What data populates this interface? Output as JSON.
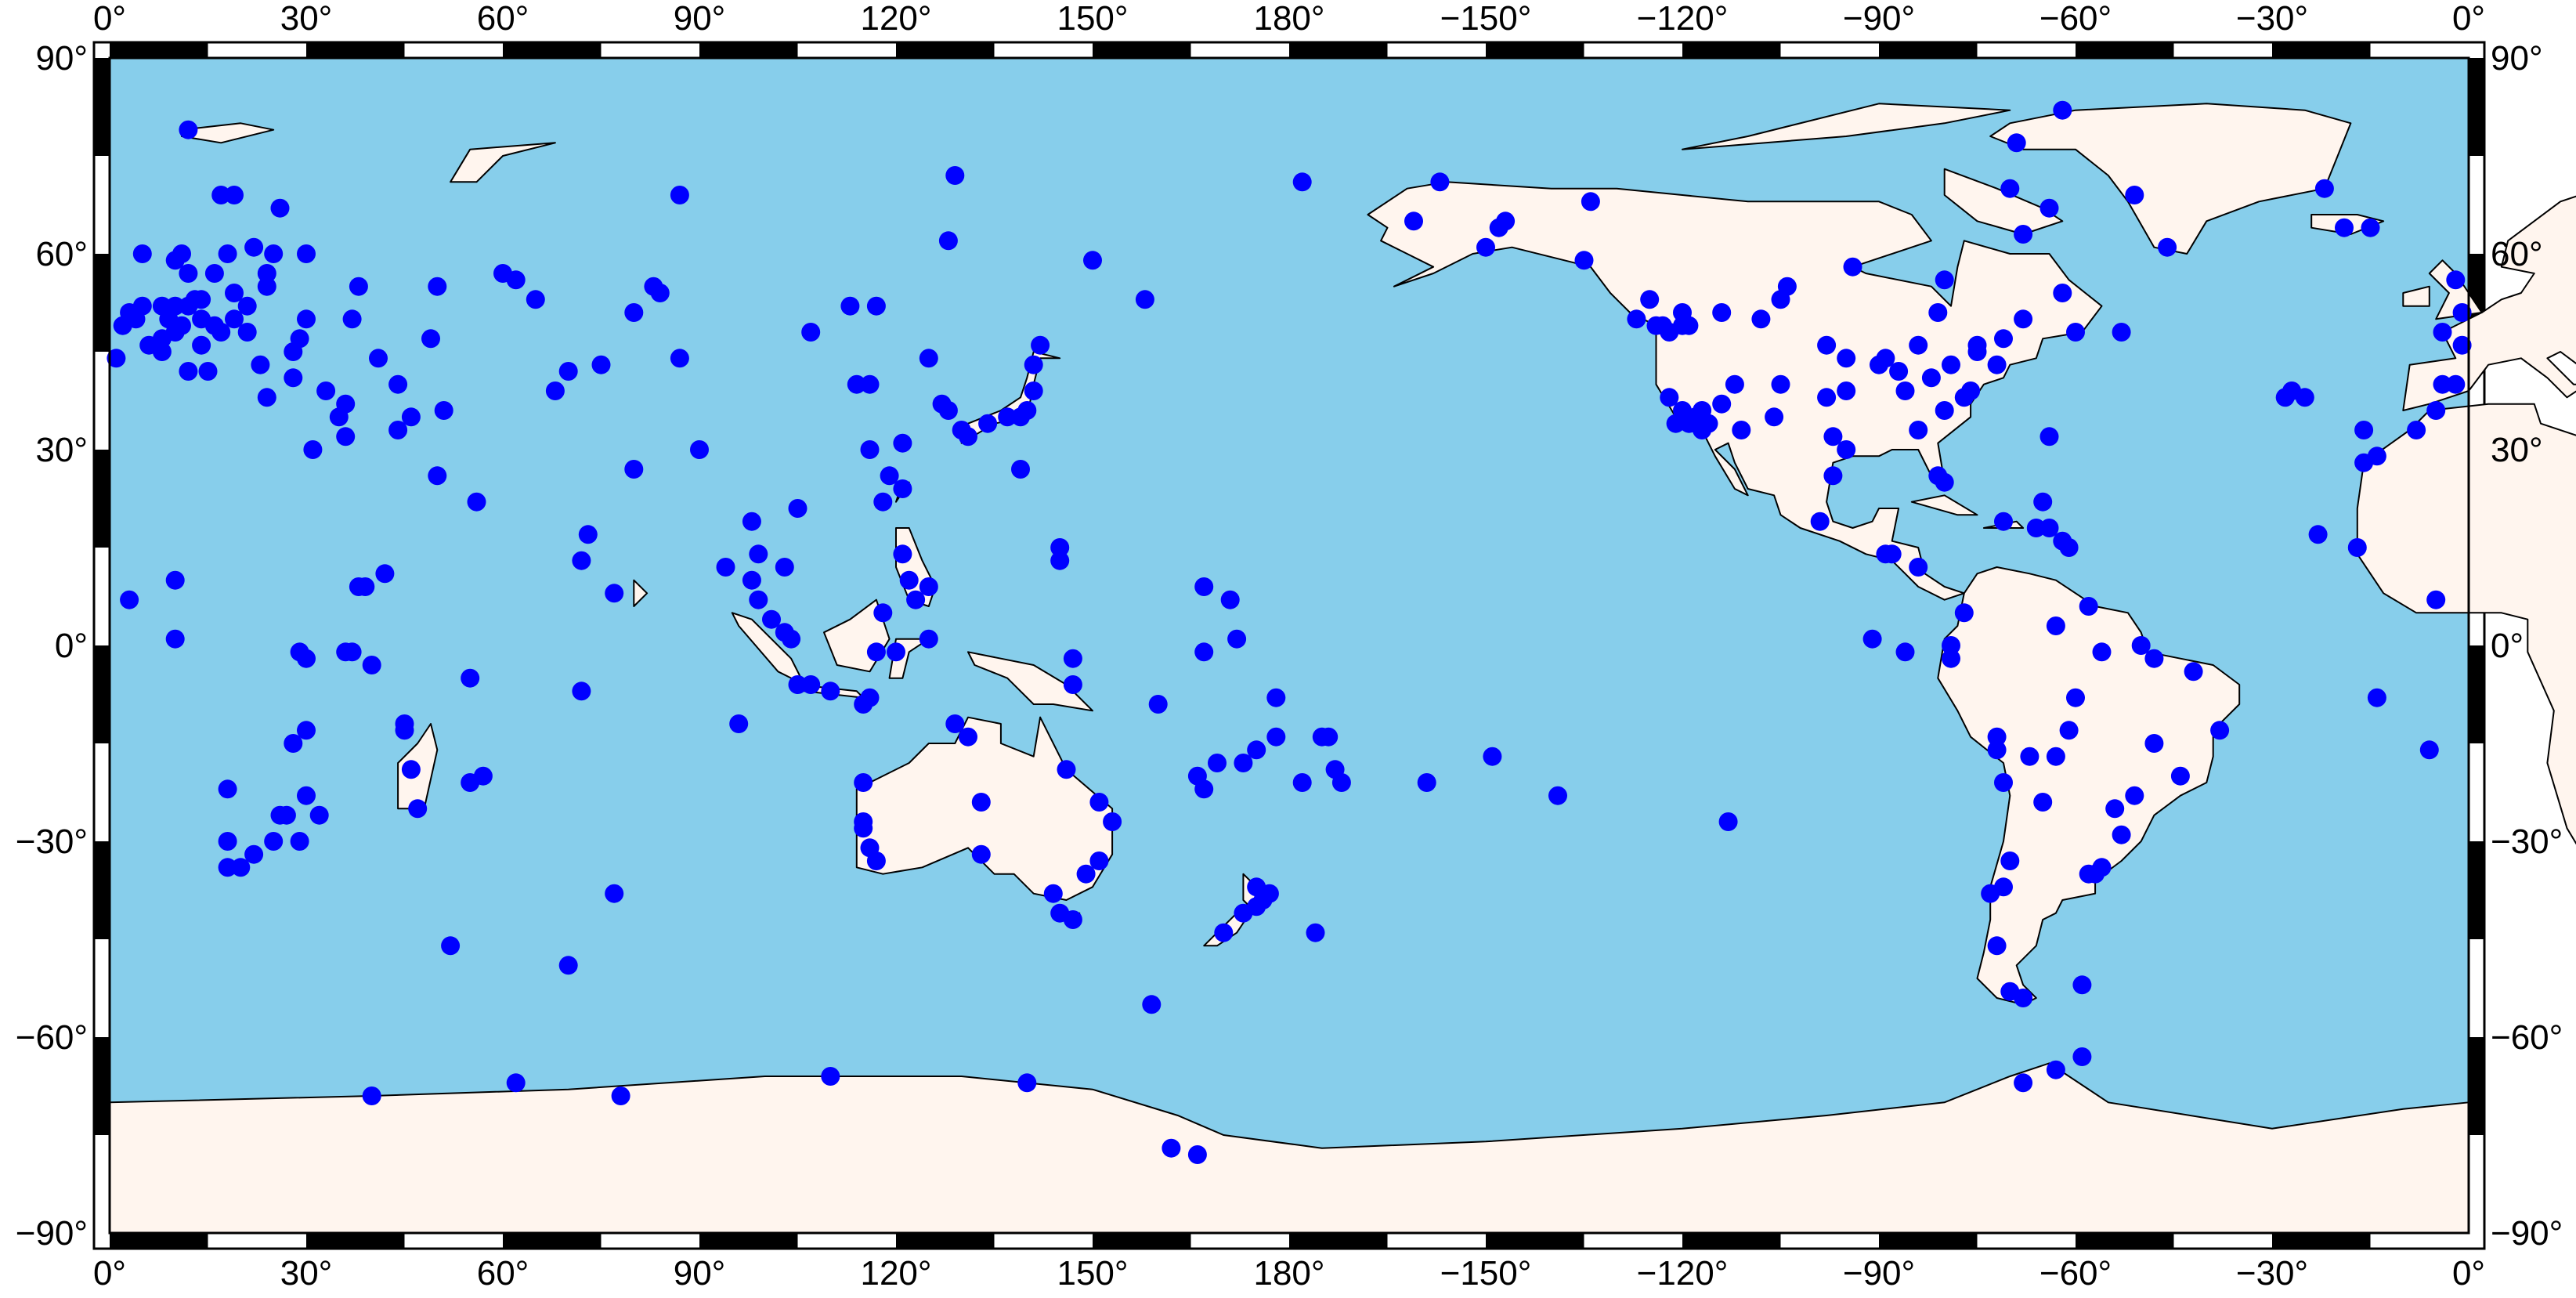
{
  "map": {
    "colors": {
      "ocean": "#87ceeb",
      "land": "#fff5ee",
      "station": "#0000ff",
      "frame": "#000000"
    },
    "x_labels": [
      "0°",
      "30°",
      "60°",
      "90°",
      "120°",
      "150°",
      "180°",
      "−150°",
      "−120°",
      "−90°",
      "−60°",
      "−30°",
      "0°"
    ],
    "y_labels": [
      "90°",
      "60°",
      "30°",
      "0°",
      "−30°",
      "−60°",
      "−90°"
    ],
    "stations": [
      [
        12,
        79
      ],
      [
        17,
        69
      ],
      [
        19,
        69
      ],
      [
        26,
        67
      ],
      [
        18,
        60
      ],
      [
        22,
        61
      ],
      [
        25,
        60
      ],
      [
        30,
        60
      ],
      [
        10,
        59
      ],
      [
        11,
        60
      ],
      [
        5,
        60
      ],
      [
        12,
        57
      ],
      [
        16,
        57
      ],
      [
        24,
        57
      ],
      [
        19,
        54
      ],
      [
        21,
        52
      ],
      [
        24,
        55
      ],
      [
        3,
        51
      ],
      [
        5,
        52
      ],
      [
        8,
        52
      ],
      [
        10,
        52
      ],
      [
        12,
        52
      ],
      [
        13,
        53
      ],
      [
        14,
        53
      ],
      [
        9,
        50
      ],
      [
        11,
        49
      ],
      [
        14,
        50
      ],
      [
        16,
        49
      ],
      [
        19,
        50
      ],
      [
        21,
        48
      ],
      [
        17,
        48
      ],
      [
        2,
        49
      ],
      [
        4,
        50
      ],
      [
        6,
        46
      ],
      [
        8,
        47
      ],
      [
        10,
        48
      ],
      [
        14,
        46
      ],
      [
        1,
        44
      ],
      [
        8,
        45
      ],
      [
        12,
        42
      ],
      [
        15,
        42
      ],
      [
        23,
        43
      ],
      [
        28,
        45
      ],
      [
        24,
        38
      ],
      [
        28,
        41
      ],
      [
        33,
        39
      ],
      [
        36,
        37
      ],
      [
        35,
        35
      ],
      [
        36,
        32
      ],
      [
        31,
        30
      ],
      [
        29,
        47
      ],
      [
        30,
        50
      ],
      [
        37,
        50
      ],
      [
        38,
        55
      ],
      [
        41,
        44
      ],
      [
        44,
        40
      ],
      [
        49,
        47
      ],
      [
        50,
        55
      ],
      [
        60,
        57
      ],
      [
        62,
        56
      ],
      [
        65,
        53
      ],
      [
        70,
        42
      ],
      [
        68,
        39
      ],
      [
        75,
        43
      ],
      [
        51,
        36
      ],
      [
        46,
        35
      ],
      [
        44,
        33
      ],
      [
        50,
        26
      ],
      [
        56,
        22
      ],
      [
        73,
        17
      ],
      [
        72,
        13
      ],
      [
        77,
        8
      ],
      [
        80,
        51
      ],
      [
        83,
        55
      ],
      [
        84,
        54
      ],
      [
        87,
        44
      ],
      [
        87,
        69
      ],
      [
        90,
        30
      ],
      [
        80,
        27
      ],
      [
        94,
        12
      ],
      [
        98,
        19
      ],
      [
        99,
        14
      ],
      [
        98,
        10
      ],
      [
        99,
        7
      ],
      [
        101,
        4
      ],
      [
        103,
        2
      ],
      [
        104,
        1
      ],
      [
        105,
        -6
      ],
      [
        107,
        -6
      ],
      [
        110,
        -7
      ],
      [
        103,
        12
      ],
      [
        105,
        21
      ],
      [
        107,
        48
      ],
      [
        113,
        52
      ],
      [
        117,
        52
      ],
      [
        114,
        40
      ],
      [
        116,
        40
      ],
      [
        116,
        30
      ],
      [
        118,
        22
      ],
      [
        119,
        26
      ],
      [
        121,
        24
      ],
      [
        121,
        31
      ],
      [
        121,
        14
      ],
      [
        122,
        10
      ],
      [
        123,
        7
      ],
      [
        118,
        5
      ],
      [
        117,
        -1
      ],
      [
        120,
        -1
      ],
      [
        125,
        1
      ],
      [
        125,
        9
      ],
      [
        125,
        44
      ],
      [
        127,
        37
      ],
      [
        128,
        36
      ],
      [
        130,
        33
      ],
      [
        131,
        32
      ],
      [
        134,
        34
      ],
      [
        137,
        35
      ],
      [
        139,
        35
      ],
      [
        140,
        36
      ],
      [
        141,
        39
      ],
      [
        141,
        43
      ],
      [
        142,
        46
      ],
      [
        139,
        27
      ],
      [
        145,
        13
      ],
      [
        145,
        15
      ],
      [
        150,
        59
      ],
      [
        158,
        53
      ],
      [
        128,
        62
      ],
      [
        129,
        72
      ],
      [
        116,
        -8
      ],
      [
        115,
        -9
      ],
      [
        115,
        -21
      ],
      [
        115,
        -28
      ],
      [
        116,
        -31
      ],
      [
        117,
        -33
      ],
      [
        115,
        -27
      ],
      [
        129,
        -12
      ],
      [
        131,
        -14
      ],
      [
        133,
        -24
      ],
      [
        133,
        -32
      ],
      [
        144,
        -38
      ],
      [
        145,
        -41
      ],
      [
        147,
        -42
      ],
      [
        149,
        -35
      ],
      [
        151,
        -33
      ],
      [
        153,
        -27
      ],
      [
        151,
        -24
      ],
      [
        146,
        -19
      ],
      [
        147,
        -6
      ],
      [
        147,
        -2
      ],
      [
        160,
        -9
      ],
      [
        167,
        9
      ],
      [
        171,
        7
      ],
      [
        172,
        1
      ],
      [
        167,
        -1
      ],
      [
        166,
        -20
      ],
      [
        167,
        -22
      ],
      [
        169,
        -18
      ],
      [
        173,
        -18
      ],
      [
        175,
        -16
      ],
      [
        178,
        -8
      ],
      [
        178,
        -14
      ],
      [
        182,
        -21
      ],
      [
        185,
        -14
      ],
      [
        186,
        -14
      ],
      [
        187,
        -19
      ],
      [
        188,
        -21
      ],
      [
        201,
        -21
      ],
      [
        211,
        -17
      ],
      [
        221,
        -23
      ],
      [
        247,
        -27
      ],
      [
        170,
        -44
      ],
      [
        173,
        -41
      ],
      [
        175,
        -40
      ],
      [
        176,
        -39
      ],
      [
        175,
        -37
      ],
      [
        177,
        -38
      ],
      [
        184,
        -44
      ],
      [
        159,
        -55
      ],
      [
        162,
        -77
      ],
      [
        166,
        -78
      ],
      [
        110,
        -66
      ],
      [
        78,
        -69
      ],
      [
        62,
        -67
      ],
      [
        40,
        -69
      ],
      [
        140,
        -67
      ],
      [
        70,
        -49
      ],
      [
        52,
        -46
      ],
      [
        57,
        -20
      ],
      [
        55,
        -21
      ],
      [
        55,
        -5
      ],
      [
        72,
        -7
      ],
      [
        96,
        -12
      ],
      [
        77,
        -38
      ],
      [
        46,
        -19
      ],
      [
        47,
        -25
      ],
      [
        45,
        -13
      ],
      [
        40,
        -3
      ],
      [
        37,
        -1
      ],
      [
        36,
        -1
      ],
      [
        30,
        -2
      ],
      [
        29,
        -1
      ],
      [
        30,
        -13
      ],
      [
        28,
        -15
      ],
      [
        32,
        -26
      ],
      [
        30,
        -23
      ],
      [
        27,
        -26
      ],
      [
        26,
        -26
      ],
      [
        29,
        -30
      ],
      [
        25,
        -30
      ],
      [
        22,
        -32
      ],
      [
        20,
        -34
      ],
      [
        18,
        -34
      ],
      [
        18,
        -30
      ],
      [
        18,
        -22
      ],
      [
        10,
        10
      ],
      [
        3,
        7
      ],
      [
        10,
        1
      ],
      [
        38,
        9
      ],
      [
        39,
        9
      ],
      [
        42,
        11
      ],
      [
        45,
        -12
      ],
      [
        -178,
        71
      ],
      [
        -161,
        65
      ],
      [
        -157,
        71
      ],
      [
        -148,
        64
      ],
      [
        -147,
        65
      ],
      [
        -135,
        59
      ],
      [
        -134,
        68
      ],
      [
        -150,
        61
      ],
      [
        -127,
        50
      ],
      [
        -124,
        49
      ],
      [
        -123,
        49
      ],
      [
        -122,
        48
      ],
      [
        -120,
        49
      ],
      [
        -119,
        49
      ],
      [
        -122,
        38
      ],
      [
        -120,
        36
      ],
      [
        -121,
        34
      ],
      [
        -119,
        34
      ],
      [
        -118,
        34
      ],
      [
        -117,
        33
      ],
      [
        -116,
        34
      ],
      [
        -118,
        35
      ],
      [
        -117,
        36
      ],
      [
        -114,
        37
      ],
      [
        -111,
        33
      ],
      [
        -112,
        40
      ],
      [
        -105,
        40
      ],
      [
        -106,
        35
      ],
      [
        -108,
        50
      ],
      [
        -114,
        51
      ],
      [
        -120,
        51
      ],
      [
        -125,
        53
      ],
      [
        -105,
        53
      ],
      [
        -104,
        55
      ],
      [
        -94,
        58
      ],
      [
        -98,
        46
      ],
      [
        -97,
        32
      ],
      [
        -87,
        42
      ],
      [
        -89,
        44
      ],
      [
        -84,
        46
      ],
      [
        -79,
        43
      ],
      [
        -75,
        46
      ],
      [
        -71,
        47
      ],
      [
        -68,
        50
      ],
      [
        -72,
        43
      ],
      [
        -76,
        39
      ],
      [
        -77,
        38
      ],
      [
        -80,
        36
      ],
      [
        -84,
        33
      ],
      [
        -81,
        26
      ],
      [
        -80,
        25
      ],
      [
        -95,
        30
      ],
      [
        -97,
        26
      ],
      [
        -99,
        19
      ],
      [
        -89,
        14
      ],
      [
        -88,
        14
      ],
      [
        -84,
        12
      ],
      [
        -91,
        1
      ],
      [
        -79,
        0
      ],
      [
        -79,
        -2
      ],
      [
        -77,
        5
      ],
      [
        -71,
        19
      ],
      [
        -66,
        18
      ],
      [
        -64,
        18
      ],
      [
        -65,
        22
      ],
      [
        -62,
        16
      ],
      [
        -61,
        15
      ],
      [
        -58,
        6
      ],
      [
        -63,
        3
      ],
      [
        -50,
        0
      ],
      [
        -48,
        -2
      ],
      [
        -42,
        -4
      ],
      [
        -38,
        -13
      ],
      [
        -44,
        -20
      ],
      [
        -48,
        -15
      ],
      [
        -51,
        -23
      ],
      [
        -54,
        -25
      ],
      [
        -53,
        -29
      ],
      [
        -56,
        -34
      ],
      [
        -58,
        -35
      ],
      [
        -65,
        -24
      ],
      [
        -63,
        -17
      ],
      [
        -67,
        -17
      ],
      [
        -72,
        -14
      ],
      [
        -72,
        -16
      ],
      [
        -71,
        -21
      ],
      [
        -70,
        -33
      ],
      [
        -71,
        -37
      ],
      [
        -73,
        -38
      ],
      [
        -72,
        -46
      ],
      [
        -70,
        -53
      ],
      [
        -68,
        -54
      ],
      [
        -59,
        -52
      ],
      [
        -59,
        -63
      ],
      [
        -63,
        -65
      ],
      [
        -68,
        -67
      ],
      [
        -57,
        -35
      ],
      [
        -60,
        -8
      ],
      [
        -61,
        -13
      ],
      [
        -56,
        -1
      ],
      [
        -95,
        39
      ],
      [
        -98,
        38
      ],
      [
        -95,
        44
      ],
      [
        -90,
        43
      ],
      [
        -80,
        56
      ],
      [
        -70,
        70
      ],
      [
        -62,
        82
      ],
      [
        -69,
        77
      ],
      [
        -68,
        63
      ],
      [
        -64,
        67
      ],
      [
        -62,
        54
      ],
      [
        -60,
        48
      ],
      [
        -53,
        48
      ],
      [
        -51,
        69
      ],
      [
        -46,
        61
      ],
      [
        -22,
        70
      ],
      [
        -19,
        64
      ],
      [
        -15,
        64
      ],
      [
        -25,
        38
      ],
      [
        -28,
        38
      ],
      [
        -27,
        39
      ],
      [
        -16,
        33
      ],
      [
        -16,
        28
      ],
      [
        -14,
        29
      ],
      [
        -17,
        15
      ],
      [
        -23,
        17
      ],
      [
        -5,
        7
      ],
      [
        -6,
        -16
      ],
      [
        -14,
        -8
      ],
      [
        -8,
        33
      ],
      [
        -5,
        36
      ],
      [
        -4,
        40
      ],
      [
        -2,
        40
      ],
      [
        -4,
        48
      ],
      [
        -1,
        51
      ],
      [
        -2,
        56
      ],
      [
        -1,
        46
      ],
      [
        -64,
        32
      ],
      [
        -86,
        -1
      ],
      [
        -82,
        41
      ],
      [
        -86,
        39
      ],
      [
        -81,
        51
      ],
      [
        -75,
        45
      ]
    ]
  }
}
